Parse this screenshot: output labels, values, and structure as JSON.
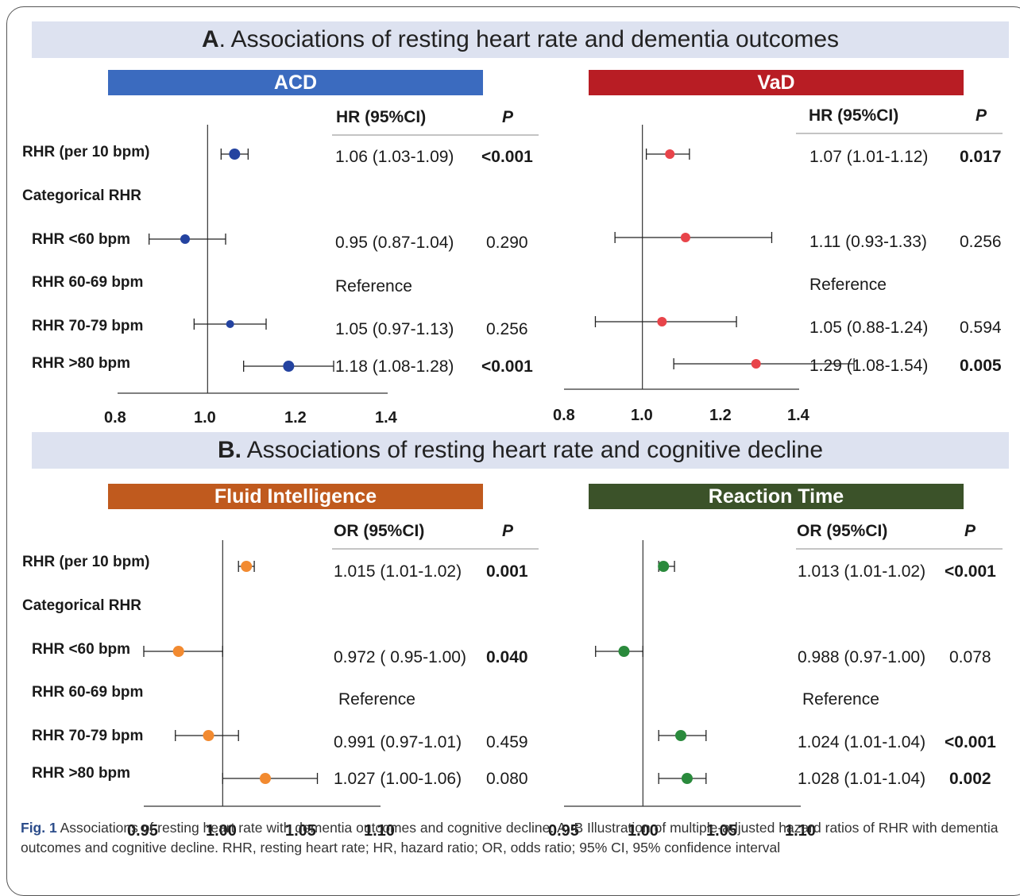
{
  "sections": [
    {
      "letter": "A",
      "title": ". Associations of resting heart rate and dementia outcomes"
    },
    {
      "letter": "B.",
      "title": " Associations of resting heart rate and cognitive decline"
    }
  ],
  "row_labels": {
    "per10": "RHR (per 10 bpm)",
    "categorical": "Categorical  RHR",
    "lt60": "RHR <60 bpm",
    "r6069": "RHR 60-69 bpm",
    "r7079": "RHR 70-79 bpm",
    "gt80": "RHR >80 bpm"
  },
  "chart_data": [
    {
      "type": "forest",
      "title": "ACD",
      "color": "#3b6bbf",
      "marker_color": "#2443a0",
      "effect_header": "HR (95%CI)",
      "p_header": "P",
      "xlim": [
        0.8,
        1.4
      ],
      "xticks": [
        "0.8",
        "1.0",
        "1.2",
        "1.4"
      ],
      "reference_line": 1.0,
      "rows": [
        {
          "label": "RHR (per 10 bpm)",
          "est": 1.06,
          "lo": 1.03,
          "hi": 1.09,
          "text": "1.06 (1.03-1.09)",
          "p": "<0.001",
          "p_bold": true
        },
        {
          "label": "RHR <60 bpm",
          "est": 0.95,
          "lo": 0.87,
          "hi": 1.04,
          "text": "0.95 (0.87-1.04)",
          "p": "0.290",
          "p_bold": false
        },
        {
          "label": "RHR 60-69 bpm",
          "est": null,
          "lo": null,
          "hi": null,
          "text": "Reference",
          "p": "",
          "p_bold": false
        },
        {
          "label": "RHR 70-79 bpm",
          "est": 1.05,
          "lo": 0.97,
          "hi": 1.13,
          "text": "1.05 (0.97-1.13)",
          "p": "0.256",
          "p_bold": false
        },
        {
          "label": "RHR >80 bpm",
          "est": 1.18,
          "lo": 1.08,
          "hi": 1.28,
          "text": "1.18 (1.08-1.28)",
          "p": "<0.001",
          "p_bold": true
        }
      ]
    },
    {
      "type": "forest",
      "title": "VaD",
      "color": "#b81d24",
      "marker_color": "#e8444a",
      "effect_header": "HR (95%CI)",
      "p_header": "P",
      "xlim": [
        0.8,
        1.4
      ],
      "xticks": [
        "0.8",
        "1.0",
        "1.2",
        "1.4"
      ],
      "reference_line": 1.0,
      "rows": [
        {
          "label": "RHR (per 10 bpm)",
          "est": 1.07,
          "lo": 1.01,
          "hi": 1.12,
          "text": "1.07 (1.01-1.12)",
          "p": "0.017",
          "p_bold": true
        },
        {
          "label": "RHR <60 bpm",
          "est": 1.11,
          "lo": 0.93,
          "hi": 1.33,
          "text": "1.11 (0.93-1.33)",
          "p": "0.256",
          "p_bold": false
        },
        {
          "label": "RHR 60-69 bpm",
          "est": null,
          "lo": null,
          "hi": null,
          "text": "Reference",
          "p": "",
          "p_bold": false
        },
        {
          "label": "RHR 70-79 bpm",
          "est": 1.05,
          "lo": 0.88,
          "hi": 1.24,
          "text": "1.05 (0.88-1.24)",
          "p": "0.594",
          "p_bold": false
        },
        {
          "label": "RHR >80 bpm",
          "est": 1.29,
          "lo": 1.08,
          "hi": 1.54,
          "text": "1.29 (1.08-1.54)",
          "p": "0.005",
          "p_bold": true
        }
      ]
    },
    {
      "type": "forest",
      "title": "Fluid Intelligence",
      "color": "#c05a1e",
      "marker_color": "#f28a30",
      "effect_header": "OR (95%CI)",
      "p_header": "P",
      "xlim": [
        0.95,
        1.1
      ],
      "xticks": [
        "0.95",
        "1.00",
        "1.05",
        "1.10"
      ],
      "reference_line": 1.0,
      "rows": [
        {
          "label": "RHR (per 10 bpm)",
          "est": 1.015,
          "lo": 1.01,
          "hi": 1.02,
          "text": "1.015 (1.01-1.02)",
          "p": "0.001",
          "p_bold": true
        },
        {
          "label": "RHR <60 bpm",
          "est": 0.972,
          "lo": 0.95,
          "hi": 1.0,
          "text": "0.972 ( 0.95-1.00)",
          "p": "0.040",
          "p_bold": true
        },
        {
          "label": "RHR 60-69 bpm",
          "est": null,
          "lo": null,
          "hi": null,
          "text": "Reference",
          "p": "",
          "p_bold": false
        },
        {
          "label": "RHR 70-79 bpm",
          "est": 0.991,
          "lo": 0.97,
          "hi": 1.01,
          "text": "0.991 (0.97-1.01)",
          "p": "0.459",
          "p_bold": false
        },
        {
          "label": "RHR >80 bpm",
          "est": 1.027,
          "lo": 1.0,
          "hi": 1.06,
          "text": "1.027 (1.00-1.06)",
          "p": "0.080",
          "p_bold": false
        }
      ]
    },
    {
      "type": "forest",
      "title": "Reaction Time",
      "color": "#3b5229",
      "marker_color": "#2a8a3c",
      "effect_header": "OR (95%CI)",
      "p_header": "P",
      "xlim": [
        0.95,
        1.1
      ],
      "xticks": [
        "0.95",
        "1.00",
        "1.05",
        "1.10"
      ],
      "reference_line": 1.0,
      "rows": [
        {
          "label": "RHR (per 10 bpm)",
          "est": 1.013,
          "lo": 1.01,
          "hi": 1.02,
          "text": "1.013 (1.01-1.02)",
          "p": "<0.001",
          "p_bold": true
        },
        {
          "label": "RHR <60 bpm",
          "est": 0.988,
          "lo": 0.97,
          "hi": 1.0,
          "text": "0.988 (0.97-1.00)",
          "p": "0.078",
          "p_bold": false
        },
        {
          "label": "RHR 60-69 bpm",
          "est": null,
          "lo": null,
          "hi": null,
          "text": "Reference",
          "p": "",
          "p_bold": false
        },
        {
          "label": "RHR 70-79 bpm",
          "est": 1.024,
          "lo": 1.01,
          "hi": 1.04,
          "text": "1.024 (1.01-1.04)",
          "p": "<0.001",
          "p_bold": true
        },
        {
          "label": "RHR >80 bpm",
          "est": 1.028,
          "lo": 1.01,
          "hi": 1.04,
          "text": "1.028 (1.01-1.04)",
          "p": "0.002",
          "p_bold": true
        }
      ]
    }
  ],
  "caption": {
    "fig": "Fig. 1",
    "text": "  Associations of resting heart rate with dementia outcomes and cognitive decline. A, B Illustration of multiple-adjusted hazard ratios of RHR with dementia outcomes and cognitive decline. RHR, resting heart rate; HR, hazard ratio; OR, odds ratio; 95% CI, 95% confidence interval"
  }
}
